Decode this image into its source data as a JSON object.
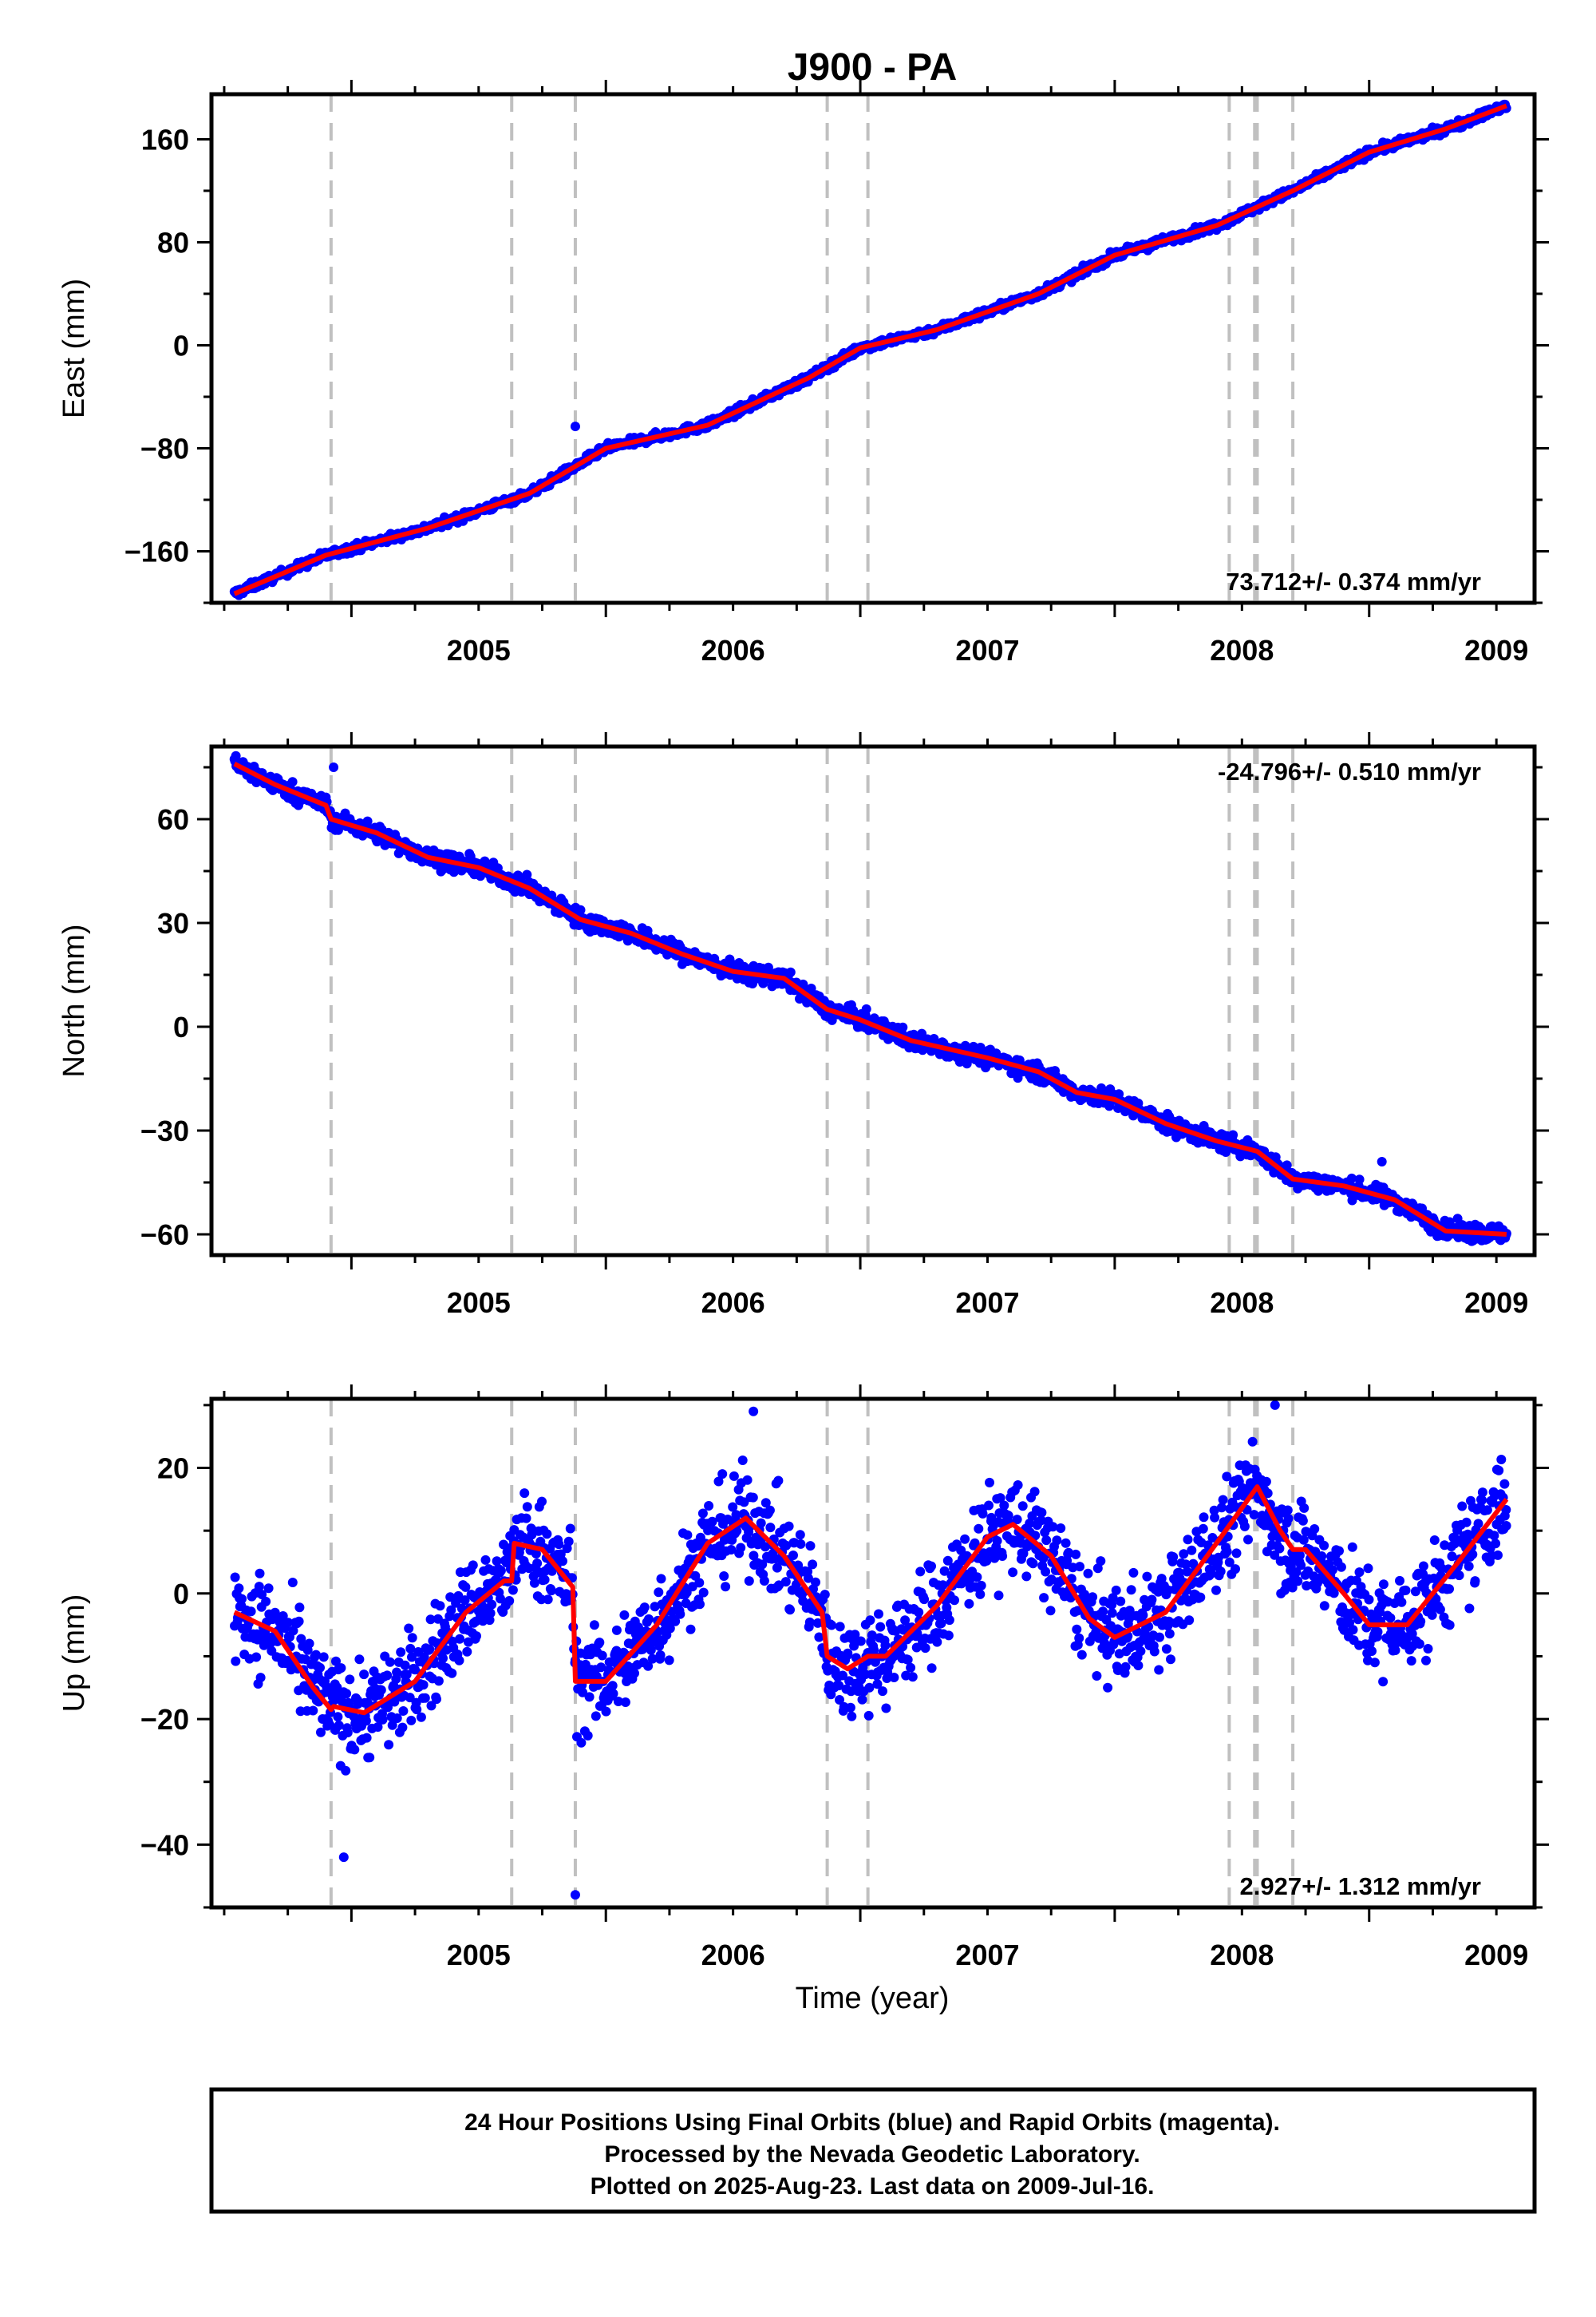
{
  "title": "J900 - PA",
  "colors": {
    "points": "#0000ff",
    "model": "#ff0000",
    "event_lines": "#c0c0c0",
    "frame": "#000000"
  },
  "chart_data": [
    {
      "type": "scatter",
      "panel": "east",
      "ylabel": "East (mm)",
      "xlim": [
        2004.45,
        2009.65
      ],
      "ylim": [
        -200,
        195
      ],
      "yticks": [
        -160,
        -80,
        0,
        80,
        160
      ],
      "xticks": [
        2005,
        2006,
        2007,
        2008,
        2009
      ],
      "rate_label": "73.712+/- 0.374 mm/yr",
      "rate_position": "bottom-right",
      "outliers": [
        [
          2005.88,
          -63
        ]
      ],
      "model_line": [
        [
          2004.54,
          -193
        ],
        [
          2004.9,
          -163
        ],
        [
          2005.3,
          -142
        ],
        [
          2005.7,
          -115
        ],
        [
          2006.0,
          -80
        ],
        [
          2006.4,
          -62
        ],
        [
          2006.8,
          -25
        ],
        [
          2007.0,
          -2
        ],
        [
          2007.3,
          12
        ],
        [
          2007.7,
          40
        ],
        [
          2008.0,
          70
        ],
        [
          2008.4,
          93
        ],
        [
          2008.7,
          120
        ],
        [
          2009.0,
          150
        ],
        [
          2009.3,
          168
        ],
        [
          2009.54,
          186
        ]
      ]
    },
    {
      "type": "scatter",
      "panel": "north",
      "ylabel": "North (mm)",
      "xlim": [
        2004.45,
        2009.65
      ],
      "ylim": [
        -66,
        81
      ],
      "yticks": [
        -60,
        -30,
        0,
        30,
        60
      ],
      "xticks": [
        2005,
        2006,
        2007,
        2008,
        2009
      ],
      "rate_label": "-24.796+/- 0.510 mm/yr",
      "rate_position": "top-right",
      "outliers": [
        [
          2004.93,
          75
        ],
        [
          2009.05,
          -39
        ]
      ],
      "model_line": [
        [
          2004.54,
          76
        ],
        [
          2004.7,
          70
        ],
        [
          2004.9,
          64
        ],
        [
          2004.92,
          60
        ],
        [
          2005.1,
          56
        ],
        [
          2005.3,
          49
        ],
        [
          2005.5,
          46
        ],
        [
          2005.7,
          40
        ],
        [
          2005.9,
          31
        ],
        [
          2006.1,
          27
        ],
        [
          2006.3,
          21
        ],
        [
          2006.5,
          16
        ],
        [
          2006.7,
          14
        ],
        [
          2006.87,
          5
        ],
        [
          2007.0,
          2
        ],
        [
          2007.2,
          -4
        ],
        [
          2007.5,
          -9
        ],
        [
          2007.7,
          -13
        ],
        [
          2007.85,
          -19
        ],
        [
          2008.0,
          -21
        ],
        [
          2008.2,
          -28
        ],
        [
          2008.4,
          -33
        ],
        [
          2008.56,
          -36
        ],
        [
          2008.7,
          -44
        ],
        [
          2008.9,
          -46
        ],
        [
          2009.1,
          -50
        ],
        [
          2009.3,
          -59
        ],
        [
          2009.54,
          -60
        ]
      ]
    },
    {
      "type": "scatter",
      "panel": "up",
      "ylabel": "Up (mm)",
      "xlabel": "Time (year)",
      "xlim": [
        2004.45,
        2009.65
      ],
      "ylim": [
        -50,
        31
      ],
      "yticks": [
        -40,
        -20,
        0,
        20
      ],
      "xticks": [
        2005,
        2006,
        2007,
        2008,
        2009
      ],
      "rate_label": "2.927+/- 1.312 mm/yr",
      "rate_position": "bottom-right",
      "outliers": [
        [
          2005.88,
          -48
        ],
        [
          2008.63,
          30
        ],
        [
          2006.58,
          29
        ],
        [
          2004.97,
          -42
        ]
      ],
      "model_line": [
        [
          2004.54,
          -3
        ],
        [
          2004.7,
          -6
        ],
        [
          2004.85,
          -15
        ],
        [
          2004.92,
          -18.5
        ],
        [
          2004.93,
          -18
        ],
        [
          2005.05,
          -19
        ],
        [
          2005.25,
          -14
        ],
        [
          2005.45,
          -3
        ],
        [
          2005.6,
          2
        ],
        [
          2005.63,
          2
        ],
        [
          2005.64,
          8
        ],
        [
          2005.75,
          7
        ],
        [
          2005.87,
          1
        ],
        [
          2005.88,
          -14
        ],
        [
          2006.0,
          -14
        ],
        [
          2006.2,
          -5
        ],
        [
          2006.4,
          8
        ],
        [
          2006.55,
          12
        ],
        [
          2006.7,
          6
        ],
        [
          2006.85,
          -3
        ],
        [
          2006.87,
          -10
        ],
        [
          2006.95,
          -12
        ],
        [
          2007.03,
          -10
        ],
        [
          2007.1,
          -10
        ],
        [
          2007.3,
          -2
        ],
        [
          2007.5,
          9
        ],
        [
          2007.6,
          11
        ],
        [
          2007.75,
          6
        ],
        [
          2007.9,
          -4
        ],
        [
          2008.0,
          -7
        ],
        [
          2008.2,
          -3
        ],
        [
          2008.4,
          8
        ],
        [
          2008.56,
          17
        ],
        [
          2008.65,
          10
        ],
        [
          2008.7,
          7
        ],
        [
          2008.75,
          7
        ],
        [
          2008.9,
          0
        ],
        [
          2009.0,
          -5
        ],
        [
          2009.15,
          -5
        ],
        [
          2009.35,
          5
        ],
        [
          2009.54,
          15
        ]
      ]
    }
  ],
  "shared": {
    "event_lines": [
      2004.92,
      2005.63,
      2005.88,
      2006.87,
      2007.03,
      2008.45,
      2008.55,
      2008.56,
      2008.7
    ],
    "data_range": [
      2004.54,
      2009.54
    ]
  },
  "footer": {
    "line1": "24 Hour Positions Using Final Orbits (blue) and Rapid Orbits (magenta).",
    "line2": "Processed by the Nevada Geodetic Laboratory.",
    "line3": "Plotted on 2025-Aug-23. Last data on 2009-Jul-16."
  }
}
